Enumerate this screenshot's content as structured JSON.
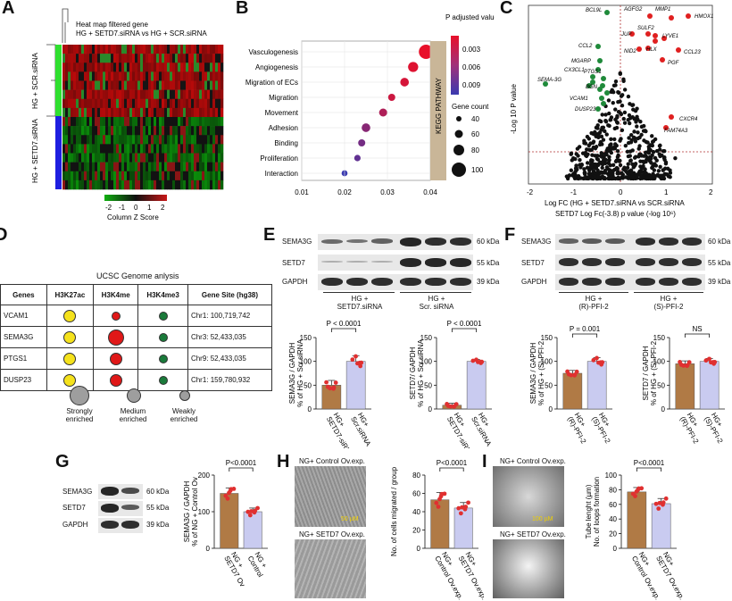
{
  "panel_labels": [
    "A",
    "B",
    "C",
    "D",
    "E",
    "F",
    "G",
    "H",
    "I"
  ],
  "panelA": {
    "title_line1": "Heat map filtered gene",
    "title_line2": "HG + SETD7.siRNA  vs HG + SCR.siRNA",
    "group_top": "HG + SCR.siRNA",
    "group_bottom": "HG + SETD7.siRNA",
    "colorbar_ticks": [
      "-2",
      "-1",
      "0",
      "1",
      "2"
    ],
    "colorbar_label": "Column Z Score",
    "colors": {
      "group_top": "#2fe02f",
      "group_bottom": "#1f1fe0",
      "low": "#10b010",
      "mid": "#101010",
      "high": "#c81818"
    }
  },
  "panelB": {
    "legend_p_title": "P adjusted value",
    "legend_p_ticks": [
      "0.003",
      "0.006",
      "0.009"
    ],
    "legend_count_title": "Gene count",
    "legend_count_values": [
      "40",
      "60",
      "80",
      "100"
    ],
    "strip_label": "KEGG PATHWAY",
    "chart_data": {
      "type": "scatter",
      "categories": [
        "Vasculogenesis",
        "Angiogenesis",
        "Migration of ECs",
        "Migration",
        "Movement",
        "Adhesion",
        "Binding",
        "Proliferation",
        "Interaction"
      ],
      "x": [
        0.039,
        0.036,
        0.034,
        0.031,
        0.029,
        0.025,
        0.024,
        0.023,
        0.02
      ],
      "gene_count": [
        100,
        72,
        62,
        52,
        58,
        62,
        52,
        47,
        44
      ],
      "p_adjusted": [
        0.001,
        0.0015,
        0.002,
        0.0025,
        0.004,
        0.006,
        0.007,
        0.008,
        0.01
      ],
      "xlim": [
        0.01,
        0.04
      ],
      "x_ticks": [
        "0.01",
        "0.02",
        "0.03",
        "0.04"
      ]
    }
  },
  "panelC": {
    "ylabel": "-Log 10 P value",
    "xlabel": "Log FC (HG + SETD7.siRNA vs SCR.siRNA",
    "caption": "SETD7 Log Fc(-3.8) p value (-log 10⁶)",
    "x_ticks": [
      "-2",
      "-1",
      "0",
      "1",
      "2"
    ],
    "genes_up": [
      "AGFG2",
      "MMP1",
      "HMOX1",
      "SULF2",
      "JUP",
      "LYVE1",
      "HLX",
      "NID2",
      "CCL23",
      "PGF",
      "CXCR4",
      "FAM74A3"
    ],
    "genes_down": [
      "BCL9L",
      "CCL2",
      "MGARP",
      "CX3CL1",
      "PTGS1",
      "SEMA-3G",
      "BGN",
      "VCAM1",
      "DUSP23"
    ]
  },
  "panelD": {
    "title": "UCSC Genome anlysis",
    "headers": [
      "Genes",
      "H3K27ac",
      "H3K4me",
      "H3K4me3",
      "Gene Site (hg38)"
    ],
    "rows": [
      {
        "gene": "VCAM1",
        "site": "Chr1: 100,719,742",
        "s1": "medium",
        "s2": "weak",
        "s3": "weak"
      },
      {
        "gene": "SEMA3G",
        "site": "Chr3: 52,433,035",
        "s1": "medium",
        "s2": "strong",
        "s3": "weak"
      },
      {
        "gene": "PTGS1",
        "site": "Chr9: 52,433,035",
        "s1": "medium",
        "s2": "medium",
        "s3": "weak"
      },
      {
        "gene": "DUSP23",
        "site": "Chr1: 159,780,932",
        "s1": "medium",
        "s2": "medium",
        "s3": "weak"
      }
    ],
    "legend": [
      "Strongly\nenriched",
      "Medium\nenriched",
      "Weakly\nenriched"
    ],
    "colors": {
      "c1": "#f5e21c",
      "c2": "#e01818",
      "c3": "#1a7a3a"
    }
  },
  "panelE": {
    "blot_labels": [
      "SEMA3G",
      "SETD7",
      "GAPDH"
    ],
    "sizes": [
      "60 kDa",
      "55 kDa",
      "39 kDa"
    ],
    "group1": "HG +\nSETD7.siRNA",
    "group2": "HG +\nScr. siRNA",
    "ylabel1": "SEMA3G / GAPDH\n% of HG + Scr.siRNA",
    "ylabel2": "SETD7/ GAPDH\n% of HG + Scr.siRNA",
    "p1": "P < 0.0001",
    "p2": "P < 0.0001",
    "xlabels": [
      "HG+\nSETD7-siRNA",
      "HG+\nScr.siRNA"
    ],
    "chart_data": [
      {
        "type": "bar",
        "categories": [
          "HG+ SETD7-siRNA",
          "HG+ Scr.siRNA"
        ],
        "values": [
          50,
          100
        ],
        "errors": [
          10,
          12
        ],
        "ylim": [
          0,
          150
        ],
        "y_ticks": [
          "0",
          "50",
          "100",
          "150"
        ]
      },
      {
        "type": "bar",
        "categories": [
          "HG+ SETD7-siRNA",
          "HG+ Scr.siRNA"
        ],
        "values": [
          8,
          100
        ],
        "errors": [
          4,
          4
        ],
        "ylim": [
          0,
          150
        ],
        "y_ticks": [
          "0",
          "50",
          "100",
          "150"
        ]
      }
    ]
  },
  "panelF": {
    "blot_labels": [
      "SEMA3G",
      "SETD7",
      "GAPDH"
    ],
    "sizes": [
      "60 kDa",
      "55 kDa",
      "39 kDa"
    ],
    "group1": "HG +\n(R)-PFI-2",
    "group2": "HG +\n(S)-PFI-2",
    "ylabel1": "SEMA3G / GAPDH\n% of HG + (S)-PFI-2",
    "ylabel2": "SETD7 / GAPDH\n% of HG + (S)-PFI-2",
    "p1": "P = 0.001",
    "p2": "NS",
    "xlabels": [
      "HG+\n(R)-PFI-2",
      "HG+\n(S)-PFI-2"
    ],
    "chart_data": [
      {
        "type": "bar",
        "categories": [
          "HG+ (R)-PFI-2",
          "HG+ (S)-PFI-2"
        ],
        "values": [
          75,
          100
        ],
        "errors": [
          6,
          8
        ],
        "ylim": [
          0,
          150
        ],
        "y_ticks": [
          "0",
          "50",
          "100",
          "150"
        ]
      },
      {
        "type": "bar",
        "categories": [
          "HG+ (R)-PFI-2",
          "HG+ (S)-PFI-2"
        ],
        "values": [
          95,
          100
        ],
        "errors": [
          6,
          6
        ],
        "ylim": [
          0,
          150
        ],
        "y_ticks": [
          "0",
          "50",
          "100",
          "150"
        ]
      }
    ]
  },
  "panelG": {
    "blot_labels": [
      "SEMA3G",
      "SETD7",
      "GAPDH"
    ],
    "sizes": [
      "60 kDa",
      "55 kDa",
      "39 kDa"
    ],
    "ylabel": "SEMA3G / GAPDH\n% of NG + Control Ov",
    "p": "P<0.0001",
    "xlabels": [
      "NG +\nSETD7 Ov",
      "NG +\nControl"
    ],
    "chart_data": {
      "type": "bar",
      "categories": [
        "NG + SETD7 Ov",
        "NG + Control"
      ],
      "values": [
        150,
        100
      ],
      "errors": [
        15,
        10
      ],
      "ylim": [
        0,
        200
      ],
      "y_ticks": [
        "0",
        "100",
        "200"
      ]
    }
  },
  "panelH": {
    "img1_label": "NG+ Control Ov.exp.",
    "img2_label": "NG+ SETD7 Ov.exp.",
    "scale": "50 µM",
    "ylabel": "No. of cells migrated / group",
    "p": "P<0.0001",
    "xlabels": [
      "NG+\nControl Ov.exp.",
      "NG+\nSETD7 Ov.exp."
    ],
    "chart_data": {
      "type": "bar",
      "categories": [
        "NG+ Control Ov.exp.",
        "NG+ SETD7 Ov.exp."
      ],
      "values": [
        53,
        44
      ],
      "errors": [
        8,
        6
      ],
      "ylim": [
        0,
        80
      ],
      "y_ticks": [
        "0",
        "20",
        "40",
        "60",
        "80"
      ]
    }
  },
  "panelI": {
    "img1_label": "NG+ Control Ov.exp.",
    "img2_label": "NG+ SETD7 Ov.exp.",
    "scale": "100 µM",
    "ylabel": "Tube lenght (µm)\nNo. of loops formation",
    "p": "P<0.0001",
    "xlabels": [
      "NG+\nControl Ov.exp.",
      "NG+\nSETD7 Ov.exp."
    ],
    "chart_data": {
      "type": "bar",
      "categories": [
        "NG+ Control Ov.exp.",
        "NG+ SETD7 Ov.exp."
      ],
      "values": [
        77,
        61
      ],
      "errors": [
        6,
        7
      ],
      "ylim": [
        0,
        100
      ],
      "y_ticks": [
        "0",
        "20",
        "40",
        "60",
        "80",
        "100"
      ]
    }
  },
  "bar_colors": {
    "bar1": "#b07a45",
    "bar2": "#c9cbf0",
    "dot1": "#e03030",
    "dot2": "#e03030"
  }
}
